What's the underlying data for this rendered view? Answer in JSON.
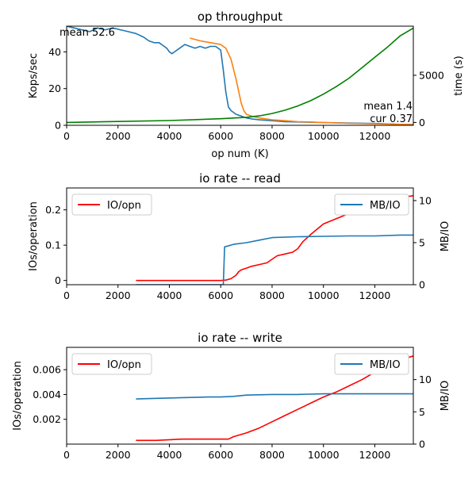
{
  "chart_data": [
    {
      "type": "line",
      "title": "op throughput",
      "xlabel": "op num (K)",
      "ylabel": "Kops/sec",
      "ylabel_right": "time (s)",
      "xlim": [
        0,
        13500
      ],
      "ylim": [
        0,
        54
      ],
      "ylim_right": [
        -300,
        10200
      ],
      "xticks": [
        0,
        2000,
        4000,
        6000,
        8000,
        10000,
        12000
      ],
      "yticks": [
        0,
        20,
        40
      ],
      "yticks_right": [
        0,
        5000
      ],
      "grid": false,
      "annotations": [
        {
          "text": "mean 52.6",
          "position": "top-left"
        },
        {
          "text": "mean 1.4",
          "position": "bottom-right"
        },
        {
          "text": "cur 0.37",
          "position": "bottom-right"
        }
      ],
      "series": [
        {
          "color": "#1f77b4",
          "axis": "left",
          "x": [
            0,
            300,
            600,
            900,
            1200,
            1500,
            1800,
            2100,
            2400,
            2700,
            3000,
            3200,
            3400,
            3600,
            3800,
            3900,
            4000,
            4100,
            4200,
            4400,
            4600,
            4800,
            5000,
            5200,
            5400,
            5600,
            5800,
            6000,
            6100,
            6200,
            6300,
            6400,
            6600,
            6800,
            7000,
            7200,
            7500,
            8000,
            8500,
            9000,
            10000,
            11000,
            12000,
            13000,
            13500
          ],
          "y": [
            54,
            53,
            52,
            51,
            53,
            52,
            53,
            52,
            51,
            50,
            48,
            46,
            45,
            45,
            43,
            42,
            40,
            39,
            40,
            42,
            44,
            43,
            42,
            43,
            42,
            43,
            43,
            41,
            30,
            18,
            10,
            8,
            6,
            5,
            4,
            3.5,
            3,
            2.5,
            2,
            1.8,
            1.5,
            1.2,
            1.0,
            0.5,
            0.37
          ]
        },
        {
          "color": "#ff7f0e",
          "axis": "left",
          "x": [
            4800,
            5200,
            5600,
            6000,
            6200,
            6400,
            6600,
            6800,
            6900,
            7000,
            7200,
            7500,
            8000,
            8500,
            9000,
            9500,
            10000,
            10500,
            11000,
            12000,
            13000,
            13500
          ],
          "y": [
            47.5,
            46,
            45,
            44,
            42,
            36,
            25,
            12,
            8,
            6,
            5,
            4,
            3,
            2.5,
            2,
            1.8,
            1.5,
            1.3,
            1.1,
            0.8,
            0.5,
            0.4
          ]
        },
        {
          "color": "#008000",
          "axis": "right",
          "x": [
            0,
            2000,
            4000,
            6000,
            7000,
            7500,
            8000,
            8500,
            9000,
            9500,
            10000,
            10500,
            11000,
            11500,
            12000,
            12500,
            13000,
            13500
          ],
          "y": [
            0,
            100,
            200,
            400,
            550,
            700,
            950,
            1300,
            1750,
            2300,
            3000,
            3800,
            4700,
            5800,
            6900,
            8000,
            9200,
            10000
          ]
        }
      ]
    },
    {
      "type": "line",
      "title": "io rate -- read",
      "xlabel": "",
      "ylabel": "IOs/operation",
      "ylabel_right": "MB/IO",
      "xlim": [
        0,
        13500
      ],
      "ylim": [
        -0.012,
        0.262
      ],
      "ylim_right": [
        0,
        11.5
      ],
      "xticks": [
        0,
        2000,
        4000,
        6000,
        8000,
        10000,
        12000
      ],
      "yticks": [
        0.0,
        0.1,
        0.2
      ],
      "yticks_right": [
        0,
        5,
        10
      ],
      "grid": false,
      "legend_position_left": "top-left",
      "legend_position_right": "top-right",
      "series": [
        {
          "name": "IO/opn",
          "color": "#ff0000",
          "axis": "left",
          "x": [
            2700,
            4000,
            5000,
            6000,
            6200,
            6400,
            6600,
            6700,
            6800,
            7000,
            7200,
            7500,
            7800,
            8000,
            8200,
            8500,
            8800,
            9000,
            9200,
            9500,
            10000,
            10500,
            11000,
            11500,
            12000,
            12500,
            13000,
            13500
          ],
          "y": [
            0.0,
            0.0,
            0.0,
            0.0,
            0.001,
            0.005,
            0.015,
            0.025,
            0.03,
            0.035,
            0.04,
            0.045,
            0.05,
            0.06,
            0.07,
            0.075,
            0.08,
            0.09,
            0.11,
            0.13,
            0.16,
            0.175,
            0.19,
            0.2,
            0.21,
            0.225,
            0.235,
            0.24
          ]
        },
        {
          "name": "MB/IO",
          "color": "#1f77b4",
          "axis": "right",
          "x": [
            2700,
            4000,
            5000,
            6000,
            6100,
            6150,
            6500,
            7000,
            7500,
            8000,
            9000,
            10000,
            11000,
            12000,
            13000,
            13500
          ],
          "y": [
            0,
            0,
            0,
            0,
            0,
            4.5,
            4.8,
            5.0,
            5.3,
            5.6,
            5.7,
            5.75,
            5.8,
            5.8,
            5.9,
            5.9
          ]
        }
      ]
    },
    {
      "type": "line",
      "title": "io rate -- write",
      "xlabel": "",
      "ylabel": "IOs/operation",
      "ylabel_right": "MB/IO",
      "xlim": [
        0,
        13500
      ],
      "ylim": [
        0,
        0.0078
      ],
      "ylim_right": [
        0,
        15
      ],
      "xticks": [
        0,
        2000,
        4000,
        6000,
        8000,
        10000,
        12000
      ],
      "yticks": [
        0.002,
        0.004,
        0.006
      ],
      "yticks_right": [
        0,
        5,
        10
      ],
      "grid": false,
      "legend_position_left": "top-left",
      "legend_position_right": "top-right",
      "series": [
        {
          "name": "IO/opn",
          "color": "#ff0000",
          "axis": "left",
          "x": [
            2700,
            3500,
            4500,
            5500,
            6300,
            6500,
            7000,
            7500,
            8000,
            8500,
            9000,
            9500,
            10000,
            10500,
            11000,
            11500,
            12000,
            12500,
            13000,
            13500
          ],
          "y": [
            0.0003,
            0.0003,
            0.0004,
            0.0004,
            0.0004,
            0.0006,
            0.0009,
            0.0013,
            0.0018,
            0.0023,
            0.0028,
            0.0033,
            0.0038,
            0.0042,
            0.0047,
            0.0052,
            0.0058,
            0.0063,
            0.0068,
            0.0071
          ]
        },
        {
          "name": "MB/IO",
          "color": "#1f77b4",
          "axis": "right",
          "x": [
            2700,
            3500,
            4500,
            5500,
            6000,
            6500,
            7000,
            8000,
            9000,
            10000,
            11000,
            12000,
            13000,
            13500
          ],
          "y": [
            7.0,
            7.1,
            7.2,
            7.3,
            7.3,
            7.4,
            7.6,
            7.7,
            7.7,
            7.8,
            7.8,
            7.8,
            7.8,
            7.8
          ]
        }
      ]
    }
  ]
}
